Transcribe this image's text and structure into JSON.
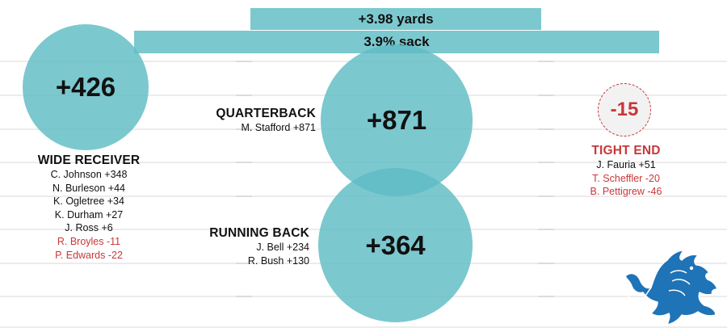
{
  "summary": {
    "yards": "+3.98 yards",
    "sack": "3.9% sack"
  },
  "wide_receiver": {
    "total": "+426",
    "title": "WIDE RECEIVER",
    "players": [
      {
        "text": "C. Johnson +348",
        "negative": false
      },
      {
        "text": "N. Burleson +44",
        "negative": false
      },
      {
        "text": "K. Ogletree +34",
        "negative": false
      },
      {
        "text": "K. Durham +27",
        "negative": false
      },
      {
        "text": "J. Ross +6",
        "negative": false
      },
      {
        "text": "R. Broyles -11",
        "negative": true
      },
      {
        "text": "P. Edwards -22",
        "negative": true
      }
    ]
  },
  "quarterback": {
    "total": "+871",
    "title": "QUARTERBACK",
    "players": [
      {
        "text": "M. Stafford +871",
        "negative": false
      }
    ]
  },
  "running_back": {
    "total": "+364",
    "title": "RUNNING BACK",
    "players": [
      {
        "text": "J. Bell +234",
        "negative": false
      },
      {
        "text": "R. Bush +130",
        "negative": false
      }
    ]
  },
  "tight_end": {
    "total": "-15",
    "title": "TIGHT END",
    "players": [
      {
        "text": "J. Fauria +51",
        "negative": false
      },
      {
        "text": "T. Scheffler -20",
        "negative": true
      },
      {
        "text": "B. Pettigrew -46",
        "negative": true
      }
    ]
  },
  "colors": {
    "circle": "#5fbcc4",
    "negative": "#c8373a",
    "logo": "#1f73b7"
  },
  "logo": {
    "icon": "detroit-lions-logo-icon"
  }
}
